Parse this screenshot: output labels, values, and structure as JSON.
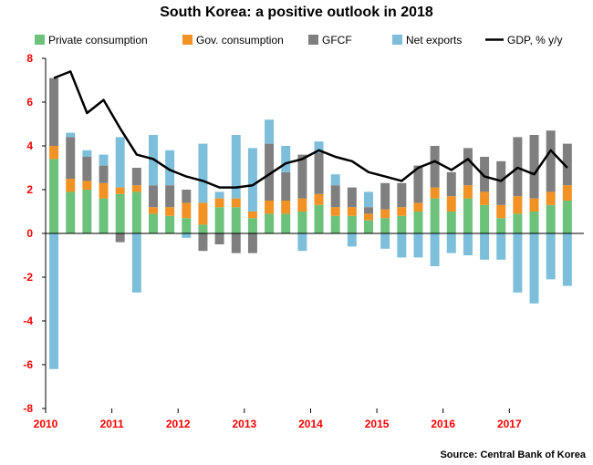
{
  "chart_data": {
    "type": "bar",
    "stacked": true,
    "title": "South Korea: a positive outlook in 2018",
    "source": "Source: Central Bank of Korea",
    "xlabel": "",
    "ylabel": "",
    "ylim": [
      -8,
      8
    ],
    "yticks": [
      "8",
      "6",
      "4",
      "2",
      "0",
      "-2",
      "-4",
      "-6",
      "-8"
    ],
    "ytick_values": [
      8,
      6,
      4,
      2,
      0,
      -2,
      -4,
      -6,
      -8
    ],
    "year_labels": [
      "2010",
      "2011",
      "2012",
      "2013",
      "2014",
      "2015",
      "2016",
      "2017"
    ],
    "quarters_per_year": 4,
    "categories": [
      "2010Q1",
      "2010Q2",
      "2010Q3",
      "2010Q4",
      "2011Q1",
      "2011Q2",
      "2011Q3",
      "2011Q4",
      "2012Q1",
      "2012Q2",
      "2012Q3",
      "2012Q4",
      "2013Q1",
      "2013Q2",
      "2013Q3",
      "2013Q4",
      "2014Q1",
      "2014Q2",
      "2014Q3",
      "2014Q4",
      "2015Q1",
      "2015Q2",
      "2015Q3",
      "2015Q4",
      "2016Q1",
      "2016Q2",
      "2016Q3",
      "2016Q4",
      "2017Q1",
      "2017Q2",
      "2017Q3",
      "2017Q4"
    ],
    "legend_position": "top",
    "colors": {
      "Private consumption": "#6cc27a",
      "Gov. consumption": "#f29224",
      "GFCF": "#7f7f7f",
      "Net exports": "#7dbfdb",
      "GDP, % y/y": "#000000",
      "axis": "#000000",
      "tick_label": "#ff0000"
    },
    "series": [
      {
        "name": "Private consumption",
        "kind": "bar",
        "values": [
          3.4,
          1.9,
          2.0,
          1.6,
          1.8,
          1.9,
          0.9,
          0.8,
          0.7,
          0.4,
          1.2,
          1.2,
          0.7,
          0.9,
          0.9,
          1.0,
          1.3,
          0.8,
          0.8,
          0.6,
          0.7,
          0.8,
          1.0,
          1.6,
          1.0,
          1.6,
          1.3,
          0.7,
          0.9,
          1.0,
          1.3,
          1.5
        ]
      },
      {
        "name": "Gov. consumption",
        "kind": "bar",
        "values": [
          0.6,
          0.6,
          0.4,
          0.7,
          0.3,
          0.3,
          0.3,
          0.4,
          0.7,
          1.0,
          0.4,
          0.4,
          0.3,
          0.6,
          0.6,
          0.6,
          0.5,
          0.4,
          0.4,
          0.3,
          0.4,
          0.4,
          0.4,
          0.5,
          0.7,
          0.6,
          0.6,
          0.6,
          0.8,
          0.6,
          0.6,
          0.7
        ]
      },
      {
        "name": "GFCF",
        "kind": "bar",
        "values": [
          3.1,
          1.9,
          1.1,
          0.8,
          -0.4,
          0.8,
          1.0,
          1.0,
          0.6,
          -0.8,
          -0.5,
          -0.9,
          -0.9,
          2.6,
          1.3,
          2.0,
          1.9,
          1.0,
          0.9,
          0.3,
          1.2,
          1.1,
          1.7,
          1.9,
          1.1,
          1.7,
          1.6,
          2.0,
          2.7,
          2.9,
          2.8,
          1.9
        ]
      },
      {
        "name": "Net exports",
        "kind": "bar",
        "values": [
          -6.2,
          0.2,
          0.3,
          0.5,
          2.3,
          -2.7,
          2.3,
          1.6,
          -0.2,
          2.7,
          0.3,
          2.9,
          2.9,
          1.1,
          1.2,
          -0.8,
          0.5,
          0.5,
          -0.6,
          0.7,
          -0.7,
          -1.1,
          -1.1,
          -1.5,
          -0.9,
          -1.0,
          -1.2,
          -1.2,
          -2.7,
          -3.2,
          -2.1,
          -2.4
        ]
      },
      {
        "name": "GDP, % y/y",
        "kind": "line",
        "values": [
          7.1,
          7.4,
          5.5,
          6.1,
          4.8,
          3.6,
          3.4,
          2.9,
          2.6,
          2.4,
          2.1,
          2.1,
          2.2,
          2.7,
          3.2,
          3.4,
          3.8,
          3.5,
          3.3,
          2.8,
          2.6,
          2.4,
          3.0,
          3.3,
          2.9,
          3.4,
          2.6,
          2.4,
          3.0,
          2.7,
          3.8,
          3.0
        ]
      }
    ]
  }
}
